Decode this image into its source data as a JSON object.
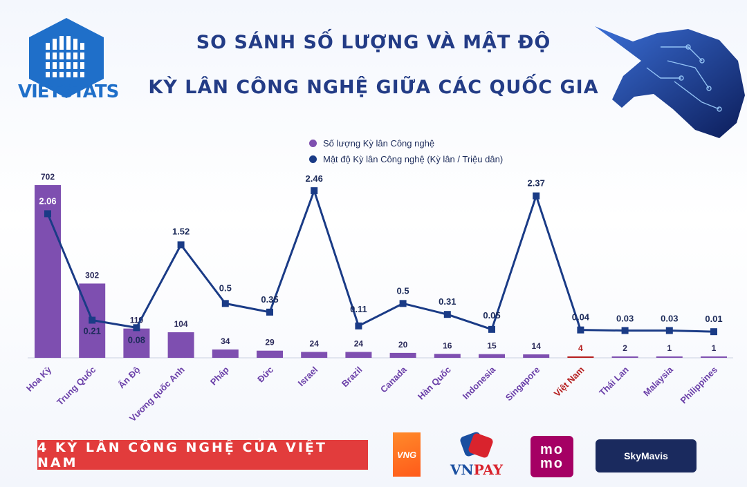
{
  "brand": {
    "name": "VIETSTATS"
  },
  "title": {
    "line1": "SO SÁNH SỐ LƯỢNG VÀ MẬT ĐỘ",
    "line2": "KỲ LÂN CÔNG NGHỆ GIỮA CÁC QUỐC GIA"
  },
  "colors": {
    "bar": "#7e4fb0",
    "line": "#1a3b86",
    "highlight": "#b51d1d",
    "title": "#233c86"
  },
  "chart_data": {
    "type": "bar",
    "categories": [
      "Hoa Kỳ",
      "Trung Quốc",
      "Ấn Độ",
      "Vương quốc Anh",
      "Pháp",
      "Đức",
      "Israel",
      "Brazil",
      "Canada",
      "Hàn Quốc",
      "Indonesia",
      "Singapore",
      "Việt Nam",
      "Thái Lan",
      "Malaysia",
      "Philippines"
    ],
    "highlight_category": "Việt Nam",
    "series": [
      {
        "name": "Số lượng Kỳ lân Công nghệ",
        "type": "bar",
        "values": [
          702,
          302,
          119,
          104,
          34,
          29,
          24,
          24,
          20,
          16,
          15,
          14,
          4,
          2,
          1,
          1
        ]
      },
      {
        "name": "Mật độ Kỳ lân Công nghệ (Kỳ lân / Triệu dân)",
        "type": "line",
        "values": [
          2.06,
          0.21,
          0.08,
          1.52,
          0.5,
          0.35,
          2.46,
          0.11,
          0.5,
          0.31,
          0.05,
          2.37,
          0.04,
          0.03,
          0.03,
          0.01
        ]
      }
    ],
    "legend_position": "top-center",
    "grid": false
  },
  "footer": {
    "banner": "4 KỲ LÂN CÔNG NGHỆ CỦA VIỆT NAM",
    "logos": [
      "VNG",
      "VNPAY",
      "momo",
      "SkyMavis"
    ],
    "vng": "VNG",
    "vnpay_vn": "VN",
    "vnpay_pay": "PAY",
    "momo_top": "mo",
    "momo_bottom": "mo",
    "skymavis": "SkyMavis"
  }
}
